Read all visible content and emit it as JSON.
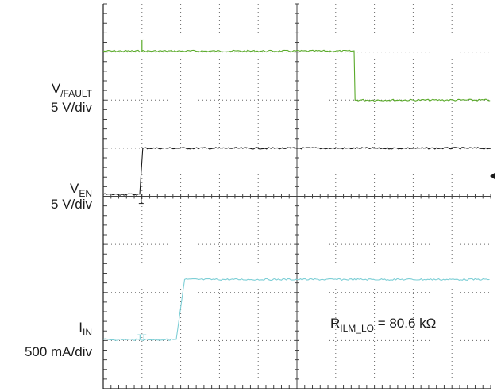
{
  "chart_data": {
    "type": "line",
    "title": "",
    "xlabel": "",
    "ylabel": "",
    "grid": true,
    "divisions": {
      "x": 10,
      "y": 8
    },
    "x_range_div": [
      0,
      10
    ],
    "y_range_div": [
      0,
      8
    ],
    "annotation": {
      "base": "R",
      "subscript": "ILM_LO",
      "suffix": " = 80.6 kΩ"
    },
    "series": [
      {
        "label_base": "V",
        "label_sub": "/FAULT",
        "scale": "5 V/div",
        "color": "#5aaa2a",
        "points_div": [
          [
            0,
            7.02
          ],
          [
            6.5,
            7.02
          ],
          [
            6.5,
            6.0
          ],
          [
            10,
            6.0
          ]
        ],
        "spikes_div": [
          [
            1.0,
            7.25
          ]
        ]
      },
      {
        "label_base": "V",
        "label_sub": "EN",
        "scale": "5 V/div",
        "color": "#1a1a1a",
        "points_div": [
          [
            0,
            4.04
          ],
          [
            0.98,
            4.04
          ],
          [
            1.02,
            5.0
          ],
          [
            10,
            5.0
          ]
        ],
        "spikes_div": [
          [
            0.98,
            3.85
          ]
        ]
      },
      {
        "label_base": "I",
        "label_sub": "IN",
        "scale": "500 mA/div",
        "color": "#7ecfd6",
        "points_div": [
          [
            0,
            1.02
          ],
          [
            1.9,
            1.02
          ],
          [
            2.1,
            2.27
          ],
          [
            10,
            2.27
          ]
        ],
        "spikes_div": [
          [
            0.95,
            1.12
          ],
          [
            1.05,
            1.12
          ]
        ]
      }
    ]
  }
}
